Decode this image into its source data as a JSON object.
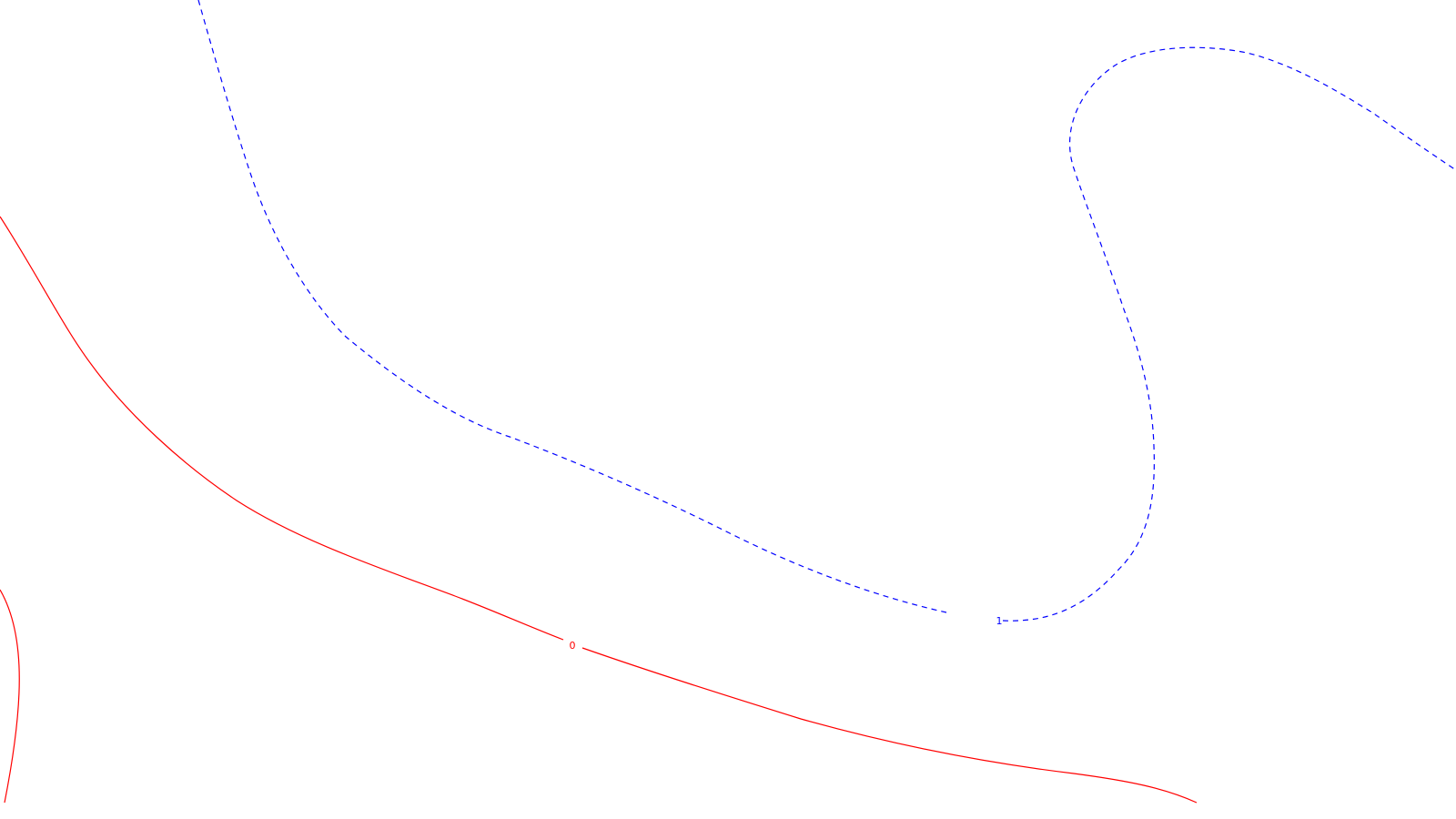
{
  "map": {
    "contours": [
      {
        "id": "contour-0",
        "label": "0",
        "color": "#ff0000",
        "style": "solid"
      },
      {
        "id": "contour-1",
        "label": "1",
        "color": "#0000ff",
        "style": "dashed"
      }
    ]
  }
}
